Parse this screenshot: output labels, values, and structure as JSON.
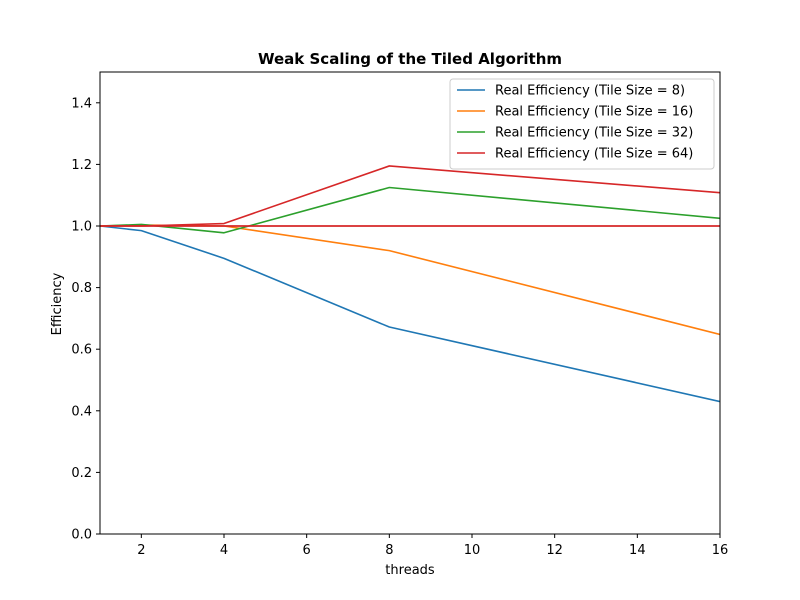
{
  "chart_data": {
    "type": "line",
    "title": "Weak Scaling of the Tiled Algorithm",
    "xlabel": "threads",
    "ylabel": "Efficiency",
    "xlim": [
      1,
      16
    ],
    "ylim": [
      0.0,
      1.5
    ],
    "xticks": [
      2,
      4,
      6,
      8,
      10,
      12,
      14,
      16
    ],
    "xtick_labels": [
      "2",
      "4",
      "6",
      "8",
      "10",
      "12",
      "14",
      "16"
    ],
    "yticks": [
      0.0,
      0.2,
      0.4,
      0.6,
      0.8,
      1.0,
      1.2,
      1.4
    ],
    "ytick_labels": [
      "0.0",
      "0.2",
      "0.4",
      "0.6",
      "0.8",
      "1.0",
      "1.2",
      "1.4"
    ],
    "grid": false,
    "legend_position": "top-right",
    "x": [
      1,
      2,
      4,
      8,
      16
    ],
    "series": [
      {
        "name": "Real Efficiency (Tile Size = 8)",
        "color": "#1f77b4",
        "values": [
          1.0,
          0.985,
          0.895,
          0.672,
          0.43
        ]
      },
      {
        "name": "Real Efficiency (Tile Size = 16)",
        "color": "#ff7f0e",
        "values": [
          1.0,
          1.003,
          1.0,
          0.92,
          0.648
        ]
      },
      {
        "name": "Real Efficiency (Tile Size = 32)",
        "color": "#2ca02c",
        "values": [
          1.0,
          1.005,
          0.978,
          1.125,
          1.025
        ]
      },
      {
        "name": "Real Efficiency (Tile Size = 64)",
        "color": "#d62728",
        "values": [
          1.0,
          1.0,
          1.008,
          1.195,
          1.108
        ]
      }
    ],
    "reference_line": {
      "color": "#d62728",
      "y": 1.0
    }
  }
}
